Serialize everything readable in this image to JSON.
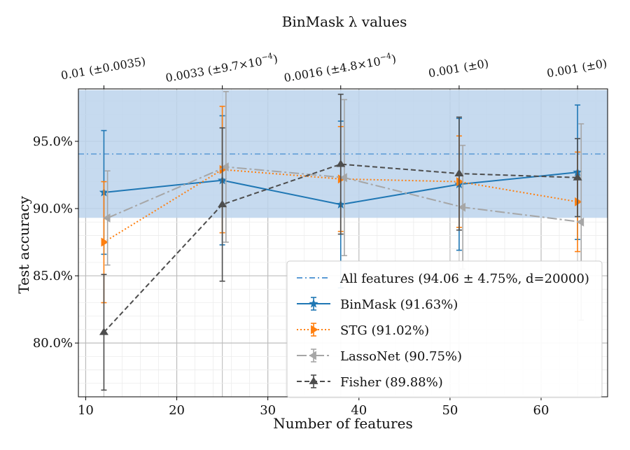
{
  "chart_data": {
    "type": "line",
    "title": "BinMask λ values",
    "xlabel": "Number of features",
    "ylabel": "Test accuracy",
    "xlim": [
      9.2,
      67.3
    ],
    "ylim": [
      76,
      98.9
    ],
    "x_ticks": [
      10,
      20,
      30,
      40,
      50,
      60
    ],
    "y_ticks": [
      80,
      85,
      90,
      95
    ],
    "y_tick_labels": [
      "80.0%",
      "85.0%",
      "90.0%",
      "95.0%"
    ],
    "top_ticks": [
      12,
      25,
      38,
      51,
      64
    ],
    "top_tick_labels": [
      {
        "main": "0.01 (±0.0035)",
        "sup": ""
      },
      {
        "main": "0.0033 (±9.7×10",
        "sup": "−4",
        "close": ")"
      },
      {
        "main": "0.0016 (±4.8×10",
        "sup": "−4",
        "close": ")"
      },
      {
        "main": "0.001 (±0)",
        "sup": ""
      },
      {
        "main": "0.001 (±0)",
        "sup": ""
      }
    ],
    "grid": true,
    "baseline": {
      "name": "All features (94.06 ± 4.75%, d=20000)",
      "mean": 94.06,
      "std": 4.75,
      "color": "#5b9bd5",
      "band_color": "#bcd4ec"
    },
    "series": [
      {
        "name": "BinMask (91.63%)",
        "color": "#1f77b4",
        "dash": "",
        "marker": "star",
        "x": [
          12,
          25,
          38,
          51,
          64
        ],
        "y": [
          91.2,
          92.1,
          90.3,
          91.8,
          92.7
        ],
        "err": [
          4.6,
          4.8,
          6.2,
          4.9,
          5.0
        ]
      },
      {
        "name": "STG (91.02%)",
        "color": "#ff7f0e",
        "dash": "2,3",
        "marker": "tri-right",
        "x": [
          12,
          25,
          38,
          51,
          64
        ],
        "y": [
          87.5,
          92.9,
          92.2,
          92.0,
          90.5
        ],
        "err": [
          4.5,
          4.7,
          3.9,
          3.4,
          3.7
        ]
      },
      {
        "name": "LassoNet (90.75%)",
        "color": "#a6a6a6",
        "dash": "14,4,3,4",
        "marker": "tri-left",
        "x": [
          12.4,
          25.4,
          38.4,
          51.4,
          64.4
        ],
        "y": [
          89.3,
          93.1,
          92.3,
          90.1,
          89.0
        ],
        "err": [
          3.5,
          5.6,
          5.8,
          4.6,
          7.3
        ]
      },
      {
        "name": "Fisher (89.88%)",
        "color": "#4d4d4d",
        "dash": "7,4",
        "marker": "tri-up",
        "x": [
          12,
          25,
          38,
          51,
          64
        ],
        "y": [
          80.8,
          90.3,
          93.3,
          92.6,
          92.3
        ],
        "err": [
          4.3,
          5.7,
          5.2,
          4.2,
          2.9
        ]
      }
    ],
    "legend_location": "lower-right"
  }
}
